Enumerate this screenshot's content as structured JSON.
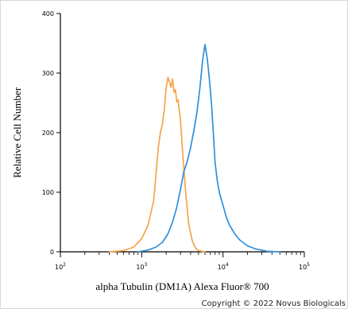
{
  "chart_data": {
    "type": "line",
    "xlabel": "alpha Tubulin (DM1A) Alexa Fluor® 700",
    "ylabel": "Relative Cell Number",
    "xscale": "log",
    "xlim": [
      100,
      100000
    ],
    "ylim": [
      0,
      400
    ],
    "y_ticks": [
      0,
      100,
      200,
      300,
      400
    ],
    "x_tick_labels": [
      {
        "base": "10",
        "exp": "2"
      },
      {
        "base": "10",
        "exp": "3"
      },
      {
        "base": "10",
        "exp": "4"
      },
      {
        "base": "10",
        "exp": "5"
      }
    ],
    "grid": false,
    "series": [
      {
        "color": "#F5A447",
        "x": [
          400,
          600,
          800,
          1000,
          1200,
          1400,
          1500,
          1600,
          1700,
          1800,
          1900,
          2000,
          2100,
          2200,
          2300,
          2400,
          2500,
          2600,
          2700,
          2800,
          3000,
          3200,
          3500,
          3800,
          4200,
          4600,
          5000,
          6000
        ],
        "y": [
          0,
          2,
          8,
          22,
          45,
          85,
          130,
          175,
          200,
          215,
          240,
          275,
          293,
          285,
          276,
          290,
          268,
          272,
          252,
          255,
          220,
          165,
          95,
          45,
          18,
          6,
          2,
          0
        ]
      },
      {
        "color": "#2F8FDA",
        "x": [
          900,
          1200,
          1500,
          1800,
          2100,
          2400,
          2700,
          3000,
          3300,
          3600,
          4000,
          4400,
          4800,
          5200,
          5600,
          6000,
          6400,
          6800,
          7200,
          7600,
          8000,
          8500,
          9000,
          10000,
          11000,
          12000,
          14000,
          16000,
          20000,
          25000,
          35000,
          50000
        ],
        "y": [
          0,
          3,
          8,
          16,
          30,
          50,
          75,
          105,
          135,
          150,
          175,
          205,
          235,
          275,
          320,
          348,
          325,
          290,
          250,
          200,
          150,
          120,
          100,
          78,
          58,
          45,
          30,
          20,
          10,
          5,
          1,
          0
        ]
      }
    ]
  },
  "footer": {
    "copyright": "Copyright © 2022 Novus Biologicals"
  }
}
